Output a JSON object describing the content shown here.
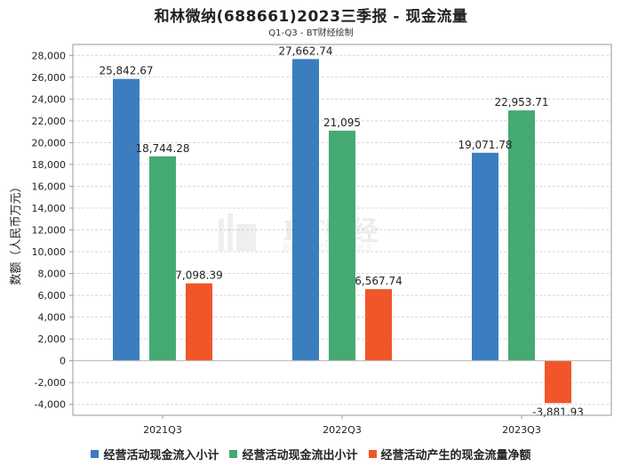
{
  "title": "和林微纳(688661)2023三季报 - 现金流量",
  "subtitle": "Q1-Q3 - BT财经绘制",
  "watermark": {
    "brand": "BT财经",
    "tagline": "BUSINESSTIMES"
  },
  "chart_data": {
    "type": "bar",
    "categories": [
      "2021Q3",
      "2022Q3",
      "2023Q3"
    ],
    "series": [
      {
        "name": "经营活动现金流入小计",
        "color": "#3a7ebf",
        "values": [
          25842.67,
          27662.74,
          19071.78
        ],
        "labels": [
          "25,842.67",
          "27,662.74",
          "19,071.78"
        ]
      },
      {
        "name": "经营活动现金流出小计",
        "color": "#45aa72",
        "values": [
          18744.28,
          21095,
          22953.71
        ],
        "labels": [
          "18,744.28",
          "21,095",
          "22,953.71"
        ]
      },
      {
        "name": "经营活动产生的现金流量净额",
        "color": "#f0562a",
        "values": [
          7098.39,
          6567.74,
          -3881.93
        ],
        "labels": [
          "7,098.39",
          "6,567.74",
          "-3,881.93"
        ]
      }
    ],
    "ylabel": "数额（人民币万元）",
    "ylim": [
      -5000,
      29000
    ],
    "yticks": [
      28000,
      26000,
      24000,
      22000,
      20000,
      18000,
      16000,
      14000,
      12000,
      10000,
      8000,
      6000,
      4000,
      2000,
      0,
      -2000,
      -4000
    ],
    "ytick_labels": [
      "28,000",
      "26,000",
      "24,000",
      "22,000",
      "20,000",
      "18,000",
      "16,000",
      "14,000",
      "12,000",
      "10,000",
      "8,000",
      "6,000",
      "4,000",
      "2,000",
      "0",
      "-2,000",
      "-4,000"
    ],
    "grid": true,
    "legend_position": "bottom"
  }
}
